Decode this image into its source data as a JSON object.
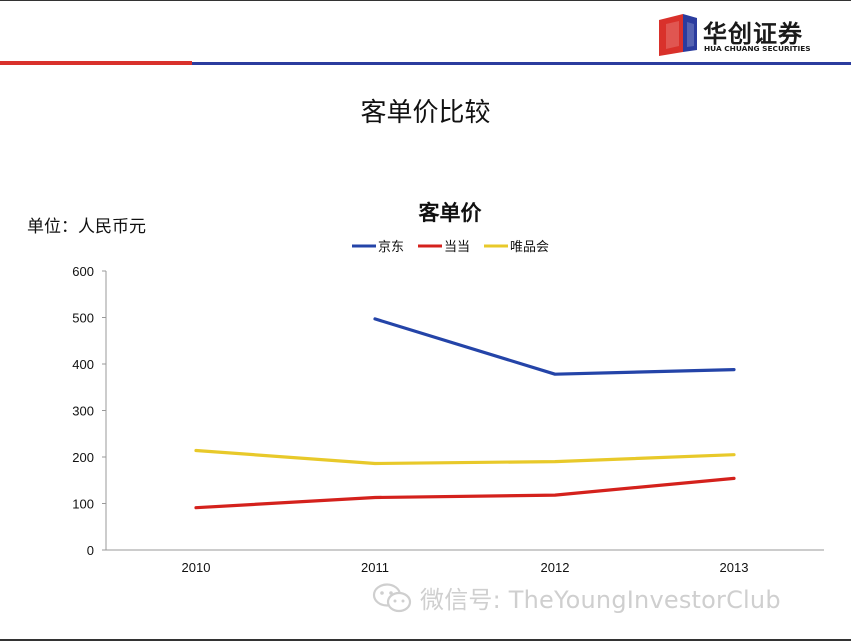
{
  "slide": {
    "title": "客单价比较",
    "unit_label": "单位：人民币元"
  },
  "logo": {
    "name_cn": "华创证券",
    "name_en": "HUA CHUANG SECURITIES"
  },
  "colors": {
    "header_red": "#d9312b",
    "header_blue": "#2b3c9e",
    "logo_red": "#d9312b",
    "logo_blue": "#2b3c9e"
  },
  "watermark": {
    "text": "微信号: TheYoungInvestorClub"
  },
  "chart_data": {
    "type": "line",
    "title": "客单价",
    "xlabel": "",
    "ylabel": "",
    "categories": [
      "2010",
      "2011",
      "2012",
      "2013"
    ],
    "ylim": [
      0,
      600
    ],
    "yticks": [
      0,
      100,
      200,
      300,
      400,
      500,
      600
    ],
    "grid": false,
    "legend_position": "top",
    "series": [
      {
        "name": "京东",
        "color": "#2444a8",
        "values": [
          null,
          497,
          378,
          388
        ]
      },
      {
        "name": "当当",
        "color": "#d4211c",
        "values": [
          91,
          113,
          118,
          154
        ]
      },
      {
        "name": "唯品会",
        "color": "#e8c92a",
        "values": [
          214,
          186,
          190,
          205
        ]
      }
    ]
  }
}
